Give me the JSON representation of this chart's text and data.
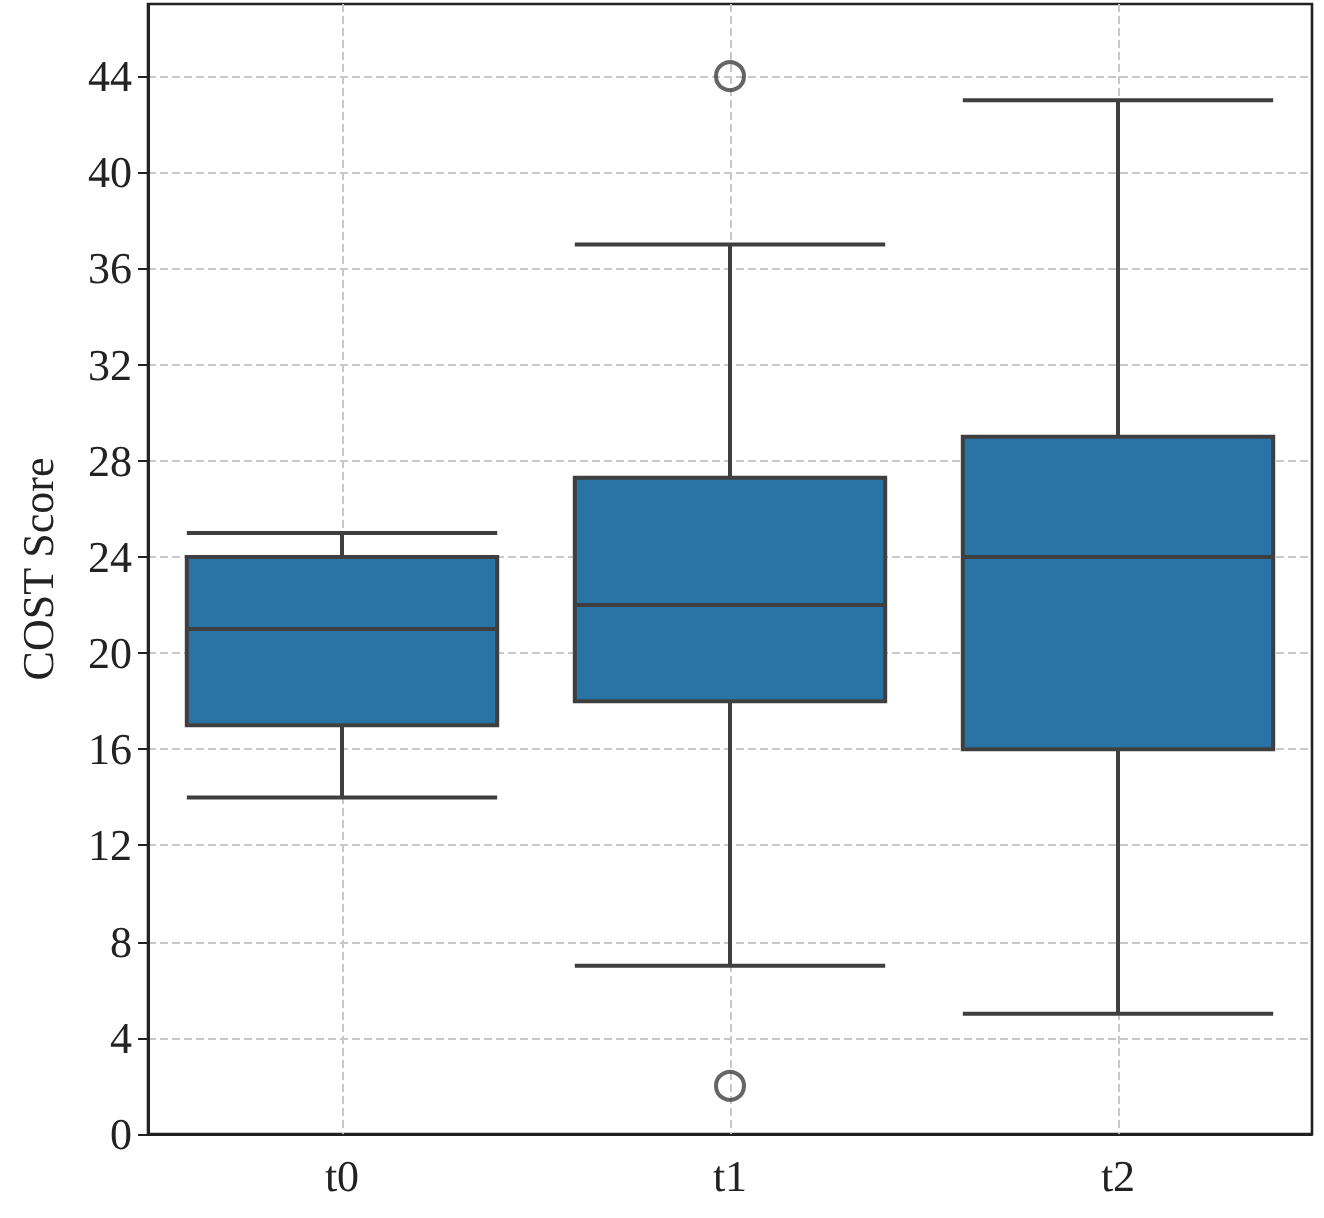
{
  "chart_data": {
    "type": "box",
    "ylabel": "COST Score",
    "categories": [
      "t0",
      "t1",
      "t2"
    ],
    "boxes": [
      {
        "low": 14,
        "q1": 17,
        "median": 21,
        "q3": 24,
        "high": 25
      },
      {
        "low": 7,
        "q1": 18,
        "median": 22,
        "q3": 27.3,
        "high": 37,
        "outliers": [
          2,
          44
        ]
      },
      {
        "low": 5,
        "q1": 16,
        "median": 24,
        "q3": 29,
        "high": 43
      }
    ],
    "color": "#2a74a5",
    "ylim": [
      0,
      47
    ],
    "yticks": [
      0,
      4,
      8,
      12,
      16,
      20,
      24,
      28,
      32,
      36,
      40,
      44
    ],
    "grid": true
  }
}
